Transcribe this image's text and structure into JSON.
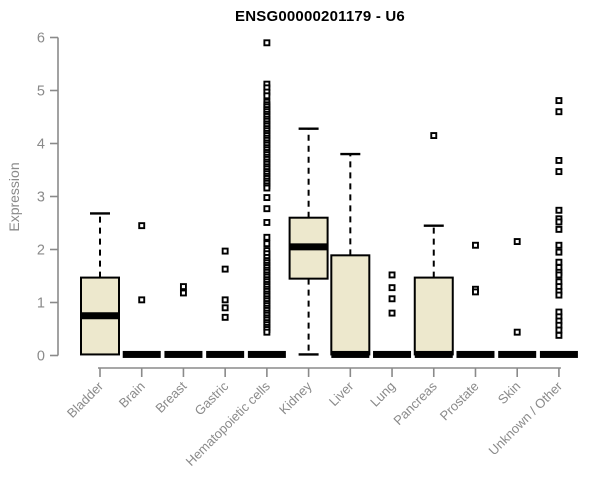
{
  "chart_data": {
    "type": "boxplot",
    "title": "ENSG00000201179 - U6",
    "ylabel": "Expression",
    "xlabel": "",
    "ylim": [
      0,
      6
    ],
    "yticks": [
      0,
      1,
      2,
      3,
      4,
      5,
      6
    ],
    "grid": false,
    "legend": null,
    "colors": {
      "box_fill": "#EDE8CD",
      "box_stroke": "#000000",
      "median": "#000000",
      "axis": "#8a8a8a",
      "tick_label": "#8a8a8a",
      "title": "#000000",
      "outlier": "#000000",
      "background": "#ffffff"
    },
    "categories": [
      "Bladder",
      "Brain",
      "Breast",
      "Gastric",
      "Hematopoietic cells",
      "Kidney",
      "Liver",
      "Lung",
      "Pancreas",
      "Prostate",
      "Skin",
      "Unknown / Other"
    ],
    "series": [
      {
        "name": "Bladder",
        "whisker_low": 0.02,
        "q1": 0.02,
        "median": 0.75,
        "q3": 1.47,
        "whisker_high": 2.68,
        "outliers": []
      },
      {
        "name": "Brain",
        "whisker_low": 0.02,
        "q1": 0.02,
        "median": 0.02,
        "q3": 0.02,
        "whisker_high": 0.02,
        "outliers": [
          2.45,
          1.05
        ]
      },
      {
        "name": "Breast",
        "whisker_low": 0.02,
        "q1": 0.02,
        "median": 0.02,
        "q3": 0.02,
        "whisker_high": 0.02,
        "outliers": [
          1.3,
          1.18
        ]
      },
      {
        "name": "Gastric",
        "whisker_low": 0.02,
        "q1": 0.02,
        "median": 0.02,
        "q3": 0.02,
        "whisker_high": 0.02,
        "outliers": [
          1.97,
          1.63,
          1.05,
          0.9,
          0.72
        ]
      },
      {
        "name": "Hematopoietic cells",
        "whisker_low": 0.02,
        "q1": 0.02,
        "median": 0.02,
        "q3": 0.02,
        "whisker_high": 0.02,
        "outliers": [
          5.9,
          5.12,
          5.05,
          4.97,
          4.9,
          4.78,
          4.73,
          4.69,
          4.64,
          4.6,
          4.55,
          4.51,
          4.46,
          4.42,
          4.37,
          4.33,
          4.28,
          4.24,
          4.19,
          4.15,
          4.1,
          4.06,
          4.01,
          3.97,
          3.92,
          3.88,
          3.83,
          3.79,
          3.74,
          3.7,
          3.65,
          3.61,
          3.56,
          3.52,
          3.47,
          3.43,
          3.38,
          3.34,
          3.29,
          3.25,
          3.2,
          3.16,
          2.98,
          2.77,
          2.51,
          2.23,
          2.11,
          1.98,
          1.92,
          1.85,
          1.79,
          1.75,
          1.7,
          1.66,
          1.61,
          1.57,
          1.52,
          1.48,
          1.43,
          1.39,
          1.34,
          1.3,
          1.25,
          1.21,
          1.16,
          1.12,
          1.07,
          1.03,
          0.98,
          0.94,
          0.89,
          0.85,
          0.8,
          0.76,
          0.71,
          0.67,
          0.62,
          0.58,
          0.53,
          0.49,
          0.44
        ]
      },
      {
        "name": "Kidney",
        "whisker_low": 0.02,
        "q1": 1.45,
        "median": 2.05,
        "q3": 2.6,
        "whisker_high": 4.28,
        "outliers": []
      },
      {
        "name": "Liver",
        "whisker_low": 0.02,
        "q1": 0.02,
        "median": 0.02,
        "q3": 1.89,
        "whisker_high": 3.8,
        "outliers": []
      },
      {
        "name": "Lung",
        "whisker_low": 0.02,
        "q1": 0.02,
        "median": 0.02,
        "q3": 0.02,
        "whisker_high": 0.02,
        "outliers": [
          1.52,
          1.28,
          1.07,
          0.8
        ]
      },
      {
        "name": "Pancreas",
        "whisker_low": 0.02,
        "q1": 0.02,
        "median": 0.02,
        "q3": 1.47,
        "whisker_high": 2.45,
        "outliers": [
          4.15
        ]
      },
      {
        "name": "Prostate",
        "whisker_low": 0.02,
        "q1": 0.02,
        "median": 0.02,
        "q3": 0.02,
        "whisker_high": 0.02,
        "outliers": [
          2.08,
          1.25,
          1.2
        ]
      },
      {
        "name": "Skin",
        "whisker_low": 0.02,
        "q1": 0.02,
        "median": 0.02,
        "q3": 0.02,
        "whisker_high": 0.02,
        "outliers": [
          2.15,
          0.44
        ]
      },
      {
        "name": "Unknown / Other",
        "whisker_low": 0.02,
        "q1": 0.02,
        "median": 0.02,
        "q3": 0.02,
        "whisker_high": 0.02,
        "outliers": [
          4.81,
          4.6,
          3.68,
          3.47,
          2.74,
          2.58,
          2.52,
          2.38,
          2.08,
          1.95,
          1.76,
          1.66,
          1.57,
          1.52,
          1.39,
          1.3,
          1.21,
          1.14,
          0.82,
          0.73,
          0.65,
          0.57,
          0.48,
          0.38
        ]
      }
    ]
  }
}
